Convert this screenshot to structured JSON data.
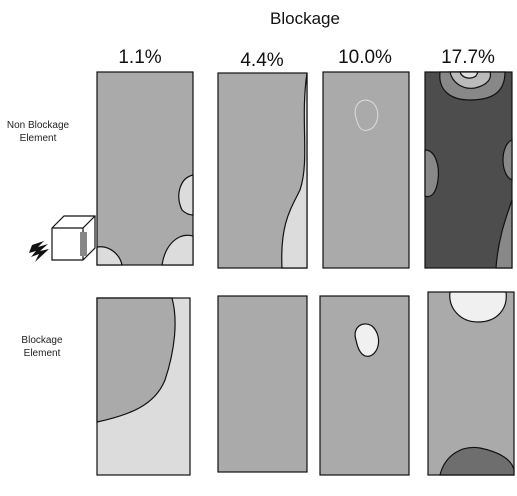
{
  "header": {
    "title": "Blockage",
    "columns": [
      "1.1%",
      "4.4%",
      "10.0%",
      "17.7%"
    ]
  },
  "rows": [
    {
      "label": [
        "Non Blockage",
        "Element"
      ]
    },
    {
      "label": [
        "Blockage",
        "Element"
      ]
    }
  ]
}
